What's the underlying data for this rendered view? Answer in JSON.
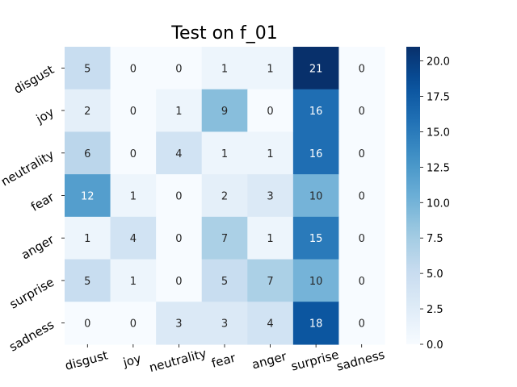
{
  "chart_data": {
    "type": "heatmap",
    "title": "Test on f_01",
    "row_labels": [
      "disgust",
      "joy",
      "neutrality",
      "fear",
      "anger",
      "surprise",
      "sadness"
    ],
    "col_labels": [
      "disgust",
      "joy",
      "neutrality",
      "fear",
      "anger",
      "surprise",
      "sadness"
    ],
    "values": [
      [
        5,
        0,
        0,
        1,
        1,
        21,
        0
      ],
      [
        2,
        0,
        1,
        9,
        0,
        16,
        0
      ],
      [
        6,
        0,
        4,
        1,
        1,
        16,
        0
      ],
      [
        12,
        1,
        0,
        2,
        3,
        10,
        0
      ],
      [
        1,
        4,
        0,
        7,
        1,
        15,
        0
      ],
      [
        5,
        1,
        0,
        5,
        7,
        10,
        0
      ],
      [
        0,
        0,
        3,
        3,
        4,
        18,
        0
      ]
    ],
    "colormap": "Blues",
    "colorbar": {
      "min": 0,
      "max": 21,
      "ticks": [
        "0.0",
        "2.5",
        "5.0",
        "7.5",
        "10.0",
        "12.5",
        "15.0",
        "17.5",
        "20.0"
      ]
    }
  }
}
